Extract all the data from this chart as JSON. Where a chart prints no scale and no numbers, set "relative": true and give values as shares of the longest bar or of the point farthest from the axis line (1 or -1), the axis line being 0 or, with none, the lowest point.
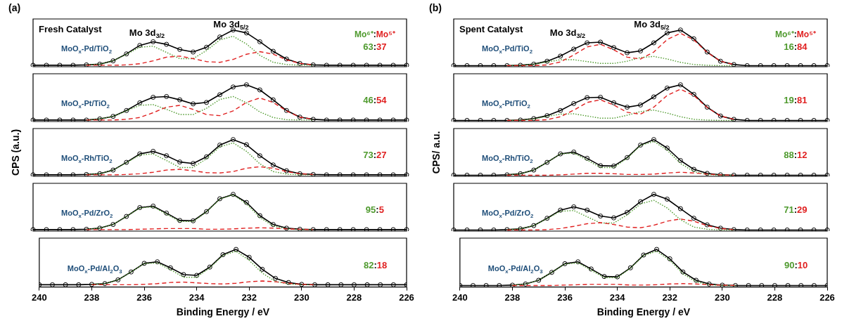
{
  "chart_data": [
    {
      "type": "line",
      "relative": true,
      "title": "(a)",
      "subtitle": "Fresh Catalyst",
      "tick_labels": false,
      "grid": false,
      "legend": false,
      "categories": [
        null,
        null,
        null,
        null,
        null,
        null,
        null,
        null,
        null,
        null,
        null,
        null,
        null,
        null,
        null,
        null,
        null,
        null,
        null,
        null,
        null,
        null,
        null,
        null,
        null,
        null,
        null,
        null,
        null
      ],
      "annotations": [
        "MoO$_{x}$-Pd/TiO$_{2}$",
        "Mo 3d$_{3/2}$",
        "Mo 3d$_{5/2}$",
        "Mo⁶⁺:Mo⁵⁺",
        "63:37"
      ],
      "series": [
        {
          "marker": "circle",
          "line_style": "solid",
          "color": "#000000",
          "values": [
            0.04,
            0.04,
            0.04,
            0.04,
            0.05,
            0.07,
            0.16,
            0.35,
            0.58,
            0.68,
            0.61,
            0.47,
            0.4,
            0.53,
            0.81,
            1.0,
            0.92,
            0.68,
            0.42,
            0.21,
            0.09,
            0.05,
            0.04,
            0.04,
            0.04,
            0.04,
            0.04,
            0.04,
            0.04
          ]
        },
        {
          "marker": "none",
          "line_style": "dotted",
          "color": "#4f9a2e",
          "values": [
            null,
            null,
            null,
            null,
            0.05,
            0.07,
            0.16,
            0.34,
            0.53,
            0.56,
            0.39,
            0.22,
            0.22,
            0.44,
            0.73,
            0.83,
            0.62,
            0.31,
            0.12,
            0.06,
            0.04,
            0.04,
            null,
            null,
            null,
            null,
            null,
            null,
            null
          ]
        },
        {
          "marker": "none",
          "line_style": "dashed",
          "color": "#e02020",
          "values": [
            null,
            null,
            null,
            null,
            0.04,
            0.04,
            0.04,
            0.05,
            0.08,
            0.16,
            0.26,
            0.29,
            0.22,
            0.14,
            0.12,
            0.2,
            0.34,
            0.41,
            0.34,
            0.19,
            0.09,
            0.05,
            null,
            null,
            null,
            null,
            null,
            null,
            null
          ]
        }
      ]
    },
    {
      "type": "line",
      "relative": true,
      "tick_labels": false,
      "grid": false,
      "legend": false,
      "categories": [
        null,
        null,
        null,
        null,
        null,
        null,
        null,
        null,
        null,
        null,
        null,
        null,
        null,
        null,
        null,
        null,
        null,
        null,
        null,
        null,
        null,
        null,
        null,
        null,
        null,
        null,
        null,
        null,
        null
      ],
      "annotations": [
        "MoO$_{x}$-Pt/TiO$_{2}$",
        "46:54"
      ],
      "series": [
        {
          "marker": "circle",
          "line_style": "solid",
          "color": "#000000",
          "values": [
            0.04,
            0.04,
            0.04,
            0.04,
            0.04,
            0.07,
            0.14,
            0.3,
            0.51,
            0.66,
            0.68,
            0.59,
            0.48,
            0.52,
            0.73,
            0.94,
            1.0,
            0.86,
            0.59,
            0.3,
            0.12,
            0.06,
            0.04,
            0.04,
            0.04,
            0.04,
            0.04,
            0.04,
            0.04
          ]
        },
        {
          "marker": "none",
          "line_style": "dotted",
          "color": "#4f9a2e",
          "values": [
            null,
            null,
            null,
            null,
            0.04,
            0.07,
            0.14,
            0.29,
            0.44,
            0.46,
            0.33,
            0.19,
            0.19,
            0.36,
            0.6,
            0.68,
            0.51,
            0.26,
            0.11,
            0.05,
            0.04,
            0.04,
            null,
            null,
            null,
            null,
            null,
            null,
            null
          ]
        },
        {
          "marker": "none",
          "line_style": "dashed",
          "color": "#e02020",
          "values": [
            null,
            null,
            null,
            null,
            0.04,
            0.04,
            0.04,
            0.06,
            0.11,
            0.24,
            0.39,
            0.44,
            0.33,
            0.19,
            0.16,
            0.29,
            0.52,
            0.64,
            0.52,
            0.29,
            0.12,
            0.06,
            null,
            null,
            null,
            null,
            null,
            null,
            null
          ]
        }
      ]
    },
    {
      "type": "line",
      "relative": true,
      "ylabel": "CPS (a.u.)",
      "tick_labels": false,
      "grid": false,
      "legend": false,
      "categories": [
        null,
        null,
        null,
        null,
        null,
        null,
        null,
        null,
        null,
        null,
        null,
        null,
        null,
        null,
        null,
        null,
        null,
        null,
        null,
        null,
        null,
        null,
        null,
        null,
        null,
        null,
        null,
        null,
        null
      ],
      "annotations": [
        "MoO$_{x}$-Rh/TiO$_{2}$",
        "73:27"
      ],
      "series": [
        {
          "marker": "circle",
          "line_style": "solid",
          "color": "#000000",
          "values": [
            0.04,
            0.04,
            0.04,
            0.04,
            0.05,
            0.07,
            0.17,
            0.38,
            0.61,
            0.68,
            0.56,
            0.39,
            0.35,
            0.53,
            0.85,
            1.0,
            0.86,
            0.56,
            0.31,
            0.15,
            0.07,
            0.05,
            0.04,
            0.04,
            0.04,
            0.04,
            0.04,
            0.04,
            0.04
          ]
        },
        {
          "marker": "none",
          "line_style": "dotted",
          "color": "#4f9a2e",
          "values": [
            null,
            null,
            null,
            null,
            0.05,
            0.07,
            0.17,
            0.37,
            0.58,
            0.61,
            0.43,
            0.24,
            0.24,
            0.48,
            0.8,
            0.91,
            0.68,
            0.34,
            0.13,
            0.06,
            0.04,
            0.04,
            null,
            null,
            null,
            null,
            null,
            null,
            null
          ]
        },
        {
          "marker": "none",
          "line_style": "dashed",
          "color": "#e02020",
          "values": [
            null,
            null,
            null,
            null,
            0.04,
            0.04,
            0.04,
            0.05,
            0.07,
            0.11,
            0.17,
            0.19,
            0.15,
            0.1,
            0.09,
            0.13,
            0.22,
            0.26,
            0.22,
            0.13,
            0.07,
            0.05,
            null,
            null,
            null,
            null,
            null,
            null,
            null
          ]
        }
      ]
    },
    {
      "type": "line",
      "relative": true,
      "tick_labels": false,
      "grid": false,
      "legend": false,
      "categories": [
        null,
        null,
        null,
        null,
        null,
        null,
        null,
        null,
        null,
        null,
        null,
        null,
        null,
        null,
        null,
        null,
        null,
        null,
        null,
        null,
        null,
        null,
        null,
        null,
        null,
        null,
        null,
        null,
        null
      ],
      "annotations": [
        "MoO$_{x}$-Pd/ZrO$_{2}$",
        "95:5"
      ],
      "series": [
        {
          "marker": "circle",
          "line_style": "solid",
          "color": "#000000",
          "values": [
            0.04,
            0.04,
            0.04,
            0.04,
            0.05,
            0.08,
            0.18,
            0.4,
            0.64,
            0.68,
            0.49,
            0.29,
            0.28,
            0.53,
            0.88,
            1.0,
            0.78,
            0.42,
            0.18,
            0.08,
            0.05,
            0.04,
            0.04,
            0.04,
            0.04,
            0.04,
            0.04,
            0.04,
            0.04
          ]
        },
        {
          "marker": "none",
          "line_style": "dotted",
          "color": "#4f9a2e",
          "values": [
            null,
            null,
            null,
            null,
            0.05,
            0.08,
            0.18,
            0.4,
            0.63,
            0.66,
            0.46,
            0.26,
            0.26,
            0.52,
            0.87,
            0.99,
            0.74,
            0.37,
            0.14,
            0.06,
            0.04,
            0.04,
            null,
            null,
            null,
            null,
            null,
            null,
            null
          ]
        },
        {
          "marker": "none",
          "line_style": "dashed",
          "color": "#e02020",
          "values": [
            null,
            null,
            null,
            null,
            0.04,
            0.04,
            0.04,
            0.04,
            0.05,
            0.06,
            0.07,
            0.07,
            0.07,
            0.05,
            0.05,
            0.06,
            0.08,
            0.09,
            0.08,
            0.06,
            0.05,
            0.04,
            null,
            null,
            null,
            null,
            null,
            null,
            null
          ]
        }
      ]
    },
    {
      "type": "line",
      "relative": true,
      "xlabel": "Binding Energy / eV",
      "xlim": [
        240,
        226
      ],
      "xticks": [
        240,
        238,
        236,
        234,
        232,
        230,
        228,
        226
      ],
      "tick_labels": "x",
      "grid": false,
      "legend": false,
      "x": [
        240,
        239.5,
        239,
        238.5,
        238,
        237.5,
        237,
        236.5,
        236,
        235.5,
        235,
        234.5,
        234,
        233.5,
        233,
        232.5,
        232,
        231.5,
        231,
        230.5,
        230,
        229.5,
        229,
        228.5,
        228,
        227.5,
        227,
        226.5,
        226
      ],
      "annotations": [
        "MoO$_{x}$-Pd/Al$_{2}$O$_{3}$",
        "82:18"
      ],
      "series": [
        {
          "marker": "circle",
          "line_style": "solid",
          "color": "#000000",
          "values": [
            0.06,
            0.06,
            0.06,
            0.06,
            0.07,
            0.09,
            0.19,
            0.4,
            0.63,
            0.67,
            0.51,
            0.33,
            0.31,
            0.53,
            0.86,
            1.0,
            0.79,
            0.47,
            0.23,
            0.12,
            0.07,
            0.06,
            0.06,
            0.06,
            0.06,
            0.06,
            0.06,
            0.06,
            0.06
          ]
        },
        {
          "marker": "none",
          "line_style": "dotted",
          "color": "#4f9a2e",
          "values": [
            null,
            null,
            null,
            null,
            0.07,
            0.09,
            0.19,
            0.4,
            0.62,
            0.64,
            0.46,
            0.26,
            0.26,
            0.51,
            0.84,
            0.95,
            0.71,
            0.37,
            0.15,
            0.08,
            0.06,
            0.06,
            null,
            null,
            null,
            null,
            null,
            null,
            null
          ]
        },
        {
          "marker": "none",
          "line_style": "dashed",
          "color": "#e02020",
          "values": [
            null,
            null,
            null,
            null,
            0.06,
            0.06,
            0.06,
            0.06,
            0.07,
            0.09,
            0.12,
            0.13,
            0.11,
            0.09,
            0.08,
            0.1,
            0.14,
            0.16,
            0.14,
            0.1,
            0.07,
            0.06,
            null,
            null,
            null,
            null,
            null,
            null,
            null
          ]
        }
      ]
    },
    {
      "type": "line",
      "relative": true,
      "title": "(b)",
      "subtitle": "Spent Catalyst",
      "tick_labels": false,
      "grid": false,
      "legend": false,
      "categories": [
        null,
        null,
        null,
        null,
        null,
        null,
        null,
        null,
        null,
        null,
        null,
        null,
        null,
        null,
        null,
        null,
        null,
        null,
        null,
        null,
        null,
        null,
        null,
        null,
        null,
        null,
        null,
        null,
        null
      ],
      "annotations": [
        "MoO$_{x}$-Pd/TiO$_{2}$",
        "Mo 3d$_{3/2}$",
        "Mo 3d$_{5/2}$",
        "Mo⁶⁺:Mo⁵⁺",
        "16:84"
      ],
      "series": [
        {
          "marker": "circle",
          "line_style": "solid",
          "color": "#000000",
          "values": [
            0.03,
            0.03,
            0.03,
            0.03,
            0.03,
            0.04,
            0.07,
            0.15,
            0.29,
            0.48,
            0.65,
            0.67,
            0.52,
            0.38,
            0.43,
            0.65,
            0.92,
            1.0,
            0.76,
            0.4,
            0.15,
            0.06,
            0.03,
            0.03,
            0.03,
            0.03,
            0.03,
            0.03,
            0.03
          ]
        },
        {
          "marker": "none",
          "line_style": "dotted",
          "color": "#4f9a2e",
          "values": [
            null,
            null,
            null,
            null,
            0.03,
            0.04,
            0.07,
            0.13,
            0.19,
            0.19,
            0.14,
            0.09,
            0.09,
            0.15,
            0.25,
            0.28,
            0.21,
            0.12,
            0.06,
            0.04,
            0.03,
            0.03,
            null,
            null,
            null,
            null,
            null,
            null,
            null
          ]
        },
        {
          "marker": "none",
          "line_style": "dashed",
          "color": "#e02020",
          "values": [
            null,
            null,
            null,
            null,
            0.03,
            0.03,
            0.03,
            0.05,
            0.13,
            0.32,
            0.54,
            0.61,
            0.46,
            0.26,
            0.21,
            0.4,
            0.74,
            0.91,
            0.73,
            0.39,
            0.15,
            0.06,
            null,
            null,
            null,
            null,
            null,
            null,
            null
          ]
        }
      ]
    },
    {
      "type": "line",
      "relative": true,
      "tick_labels": false,
      "grid": false,
      "legend": false,
      "categories": [
        null,
        null,
        null,
        null,
        null,
        null,
        null,
        null,
        null,
        null,
        null,
        null,
        null,
        null,
        null,
        null,
        null,
        null,
        null,
        null,
        null,
        null,
        null,
        null,
        null,
        null,
        null,
        null,
        null
      ],
      "annotations": [
        "MoO$_{x}$-Pt/TiO$_{2}$",
        "19:81"
      ],
      "series": [
        {
          "marker": "circle",
          "line_style": "solid",
          "color": "#000000",
          "values": [
            0.03,
            0.03,
            0.03,
            0.03,
            0.03,
            0.04,
            0.08,
            0.16,
            0.3,
            0.49,
            0.65,
            0.66,
            0.51,
            0.39,
            0.45,
            0.67,
            0.91,
            1.0,
            0.74,
            0.39,
            0.15,
            0.06,
            0.03,
            0.03,
            0.03,
            0.03,
            0.03,
            0.03,
            0.03
          ]
        },
        {
          "marker": "none",
          "line_style": "dotted",
          "color": "#4f9a2e",
          "values": [
            null,
            null,
            null,
            null,
            0.03,
            0.04,
            0.07,
            0.14,
            0.2,
            0.21,
            0.15,
            0.09,
            0.09,
            0.17,
            0.27,
            0.31,
            0.23,
            0.13,
            0.06,
            0.04,
            0.03,
            0.03,
            null,
            null,
            null,
            null,
            null,
            null,
            null
          ]
        },
        {
          "marker": "none",
          "line_style": "dashed",
          "color": "#e02020",
          "values": [
            null,
            null,
            null,
            null,
            0.03,
            0.03,
            0.03,
            0.05,
            0.13,
            0.31,
            0.52,
            0.59,
            0.45,
            0.25,
            0.2,
            0.39,
            0.71,
            0.88,
            0.71,
            0.38,
            0.15,
            0.06,
            null,
            null,
            null,
            null,
            null,
            null,
            null
          ]
        }
      ]
    },
    {
      "type": "line",
      "relative": true,
      "ylabel": "CPS/ a.u.",
      "tick_labels": false,
      "grid": false,
      "legend": false,
      "categories": [
        null,
        null,
        null,
        null,
        null,
        null,
        null,
        null,
        null,
        null,
        null,
        null,
        null,
        null,
        null,
        null,
        null,
        null,
        null,
        null,
        null,
        null,
        null,
        null,
        null,
        null,
        null,
        null,
        null
      ],
      "annotations": [
        "MoO$_{x}$-Rh/TiO$_{2}$",
        "88:12"
      ],
      "series": [
        {
          "marker": "circle",
          "line_style": "solid",
          "color": "#000000",
          "values": [
            0.03,
            0.03,
            0.03,
            0.03,
            0.04,
            0.07,
            0.17,
            0.38,
            0.61,
            0.66,
            0.49,
            0.29,
            0.28,
            0.51,
            0.85,
            1.0,
            0.77,
            0.43,
            0.19,
            0.08,
            0.04,
            0.03,
            0.03,
            0.03,
            0.03,
            0.03,
            0.03,
            0.03,
            0.03
          ]
        },
        {
          "marker": "none",
          "line_style": "dotted",
          "color": "#4f9a2e",
          "values": [
            null,
            null,
            null,
            null,
            0.04,
            0.07,
            0.17,
            0.38,
            0.61,
            0.63,
            0.44,
            0.24,
            0.24,
            0.49,
            0.84,
            0.95,
            0.71,
            0.35,
            0.13,
            0.05,
            0.03,
            0.03,
            null,
            null,
            null,
            null,
            null,
            null,
            null
          ]
        },
        {
          "marker": "none",
          "line_style": "dashed",
          "color": "#e02020",
          "values": [
            null,
            null,
            null,
            null,
            0.03,
            0.03,
            0.03,
            0.03,
            0.04,
            0.06,
            0.08,
            0.08,
            0.07,
            0.05,
            0.05,
            0.06,
            0.09,
            0.11,
            0.09,
            0.06,
            0.04,
            0.03,
            null,
            null,
            null,
            null,
            null,
            null,
            null
          ]
        }
      ]
    },
    {
      "type": "line",
      "relative": true,
      "tick_labels": false,
      "grid": false,
      "legend": false,
      "categories": [
        null,
        null,
        null,
        null,
        null,
        null,
        null,
        null,
        null,
        null,
        null,
        null,
        null,
        null,
        null,
        null,
        null,
        null,
        null,
        null,
        null,
        null,
        null,
        null,
        null,
        null,
        null,
        null,
        null
      ],
      "annotations": [
        "MoO$_{x}$-Pd/ZrO$_{2}$",
        "71:29"
      ],
      "series": [
        {
          "marker": "circle",
          "line_style": "solid",
          "color": "#000000",
          "values": [
            0.03,
            0.03,
            0.03,
            0.03,
            0.04,
            0.06,
            0.15,
            0.35,
            0.57,
            0.66,
            0.57,
            0.41,
            0.36,
            0.51,
            0.8,
            1.0,
            0.87,
            0.61,
            0.35,
            0.17,
            0.08,
            0.04,
            0.03,
            0.03,
            0.03,
            0.03,
            0.03,
            0.03,
            0.03
          ]
        },
        {
          "marker": "none",
          "line_style": "dotted",
          "color": "#4f9a2e",
          "values": [
            null,
            null,
            null,
            null,
            0.04,
            0.06,
            0.15,
            0.34,
            0.54,
            0.56,
            0.39,
            0.22,
            0.22,
            0.44,
            0.74,
            0.84,
            0.63,
            0.31,
            0.11,
            0.05,
            0.03,
            0.03,
            null,
            null,
            null,
            null,
            null,
            null,
            null
          ]
        },
        {
          "marker": "none",
          "line_style": "dashed",
          "color": "#e02020",
          "values": [
            null,
            null,
            null,
            null,
            0.03,
            0.03,
            0.03,
            0.04,
            0.07,
            0.13,
            0.2,
            0.23,
            0.18,
            0.11,
            0.09,
            0.16,
            0.27,
            0.33,
            0.27,
            0.15,
            0.07,
            0.04,
            null,
            null,
            null,
            null,
            null,
            null,
            null
          ]
        }
      ]
    },
    {
      "type": "line",
      "relative": true,
      "xlabel": "Binding Energy / eV",
      "xlim": [
        240,
        226
      ],
      "xticks": [
        240,
        238,
        236,
        234,
        232,
        230,
        228,
        226
      ],
      "tick_labels": "x",
      "grid": false,
      "legend": false,
      "x": [
        240,
        239.5,
        239,
        238.5,
        238,
        237.5,
        237,
        236.5,
        236,
        235.5,
        235,
        234.5,
        234,
        233.5,
        233,
        232.5,
        232,
        231.5,
        231,
        230.5,
        230,
        229.5,
        229,
        228.5,
        228,
        227.5,
        227,
        226.5,
        226
      ],
      "annotations": [
        "MoO$_{x}$-Pd/Al$_{2}$O$_{3}$",
        "90:10"
      ],
      "series": [
        {
          "marker": "circle",
          "line_style": "solid",
          "color": "#000000",
          "values": [
            0.04,
            0.04,
            0.04,
            0.04,
            0.05,
            0.08,
            0.18,
            0.39,
            0.62,
            0.67,
            0.48,
            0.28,
            0.27,
            0.51,
            0.85,
            1.0,
            0.75,
            0.4,
            0.18,
            0.08,
            0.05,
            0.04,
            0.04,
            0.04,
            0.04,
            0.04,
            0.04,
            0.04,
            0.04
          ]
        },
        {
          "marker": "none",
          "line_style": "dotted",
          "color": "#4f9a2e",
          "values": [
            null,
            null,
            null,
            null,
            0.05,
            0.08,
            0.18,
            0.39,
            0.61,
            0.64,
            0.45,
            0.25,
            0.25,
            0.5,
            0.84,
            0.95,
            0.71,
            0.35,
            0.14,
            0.06,
            0.04,
            0.04,
            null,
            null,
            null,
            null,
            null,
            null,
            null
          ]
        },
        {
          "marker": "none",
          "line_style": "dashed",
          "color": "#e02020",
          "values": [
            null,
            null,
            null,
            null,
            0.04,
            0.04,
            0.04,
            0.04,
            0.05,
            0.06,
            0.07,
            0.07,
            0.07,
            0.05,
            0.05,
            0.06,
            0.08,
            0.09,
            0.08,
            0.06,
            0.05,
            0.04,
            null,
            null,
            null,
            null,
            null,
            null,
            null
          ]
        }
      ]
    }
  ]
}
